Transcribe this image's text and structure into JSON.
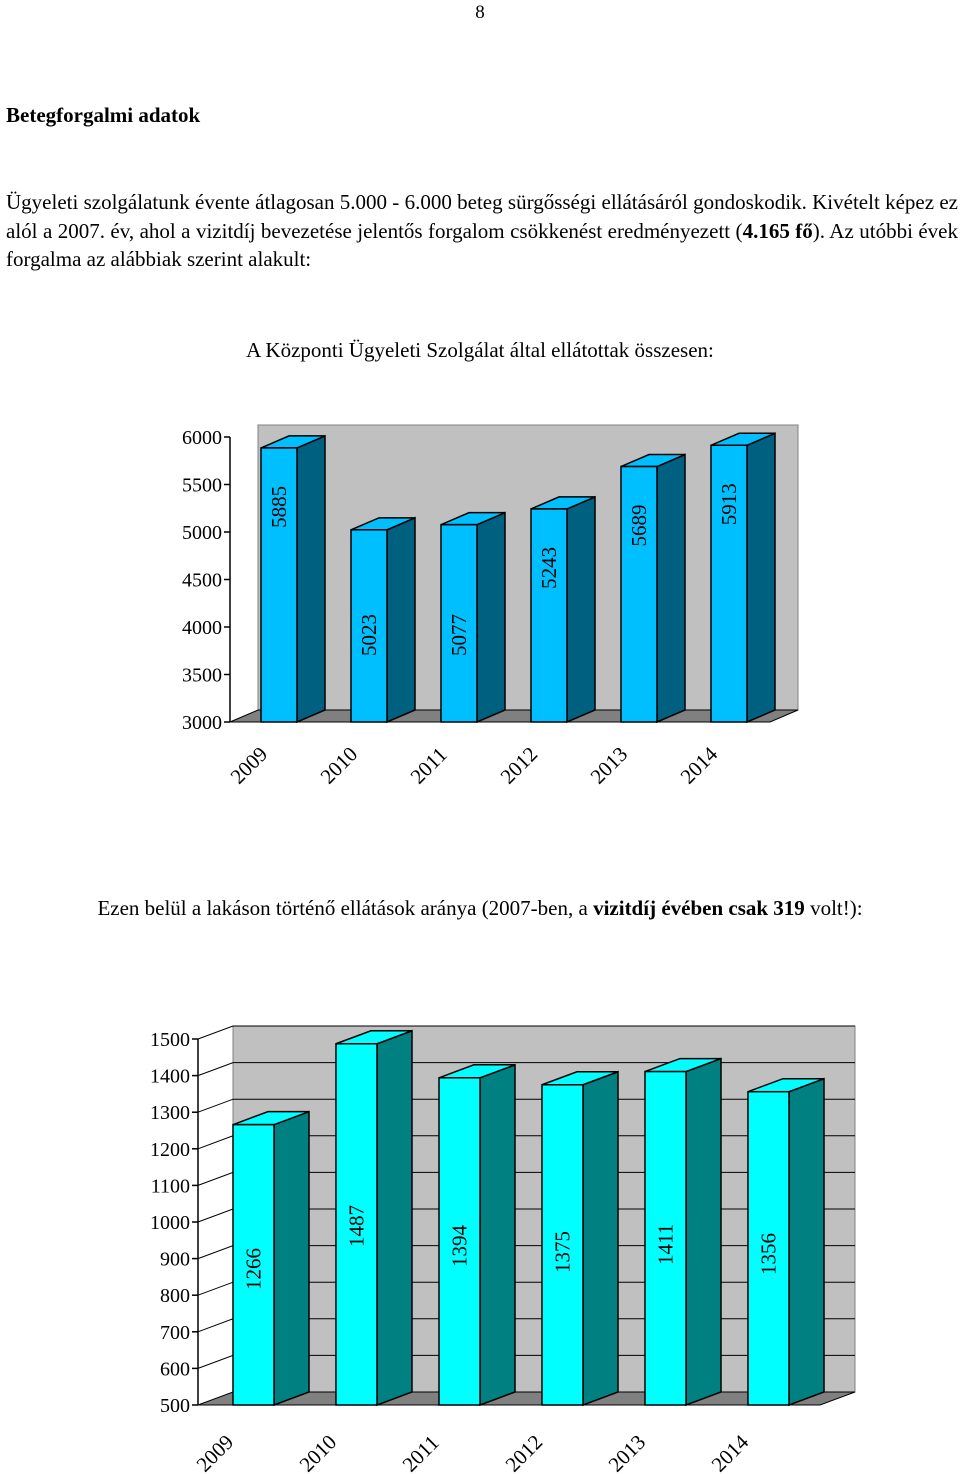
{
  "page_number": "8",
  "heading": "Betegforgalmi adatok",
  "intro": {
    "part1": "Ügyeleti szolgálatunk évente átlagosan 5.000 - 6.000 beteg sürgősségi ellátásáról gondoskodik. Kivételt képez ez alól a 2007. év, ahol a vizitdíj bevezetése jelentős forgalom csökkenést eredményezett (",
    "bold": "4.165 fő",
    "part2": "). Az utóbbi évek forgalma az alábbiak szerint alakult:"
  },
  "chart1_title": "A Központi Ügyeleti Szolgálat által ellátottak összesen:",
  "chart2_title": {
    "part1": "Ezen belül a lakáson történő ellátások aránya (2007-ben, a ",
    "bold": "vizitdíj évében csak 319",
    "part2": " volt!):"
  },
  "colors": {
    "chart1_front": "#00bfff",
    "chart1_side": "#006080",
    "chart2_front": "#00ffff",
    "chart2_side": "#008080",
    "wall": "#c0c0c0",
    "floor": "#808080"
  },
  "chart_data": [
    {
      "type": "bar",
      "title": "A Központi Ügyeleti Szolgálat által ellátottak összesen:",
      "categories": [
        "2009",
        "2010",
        "2011",
        "2012",
        "2013",
        "2014"
      ],
      "values": [
        5885,
        5023,
        5077,
        5243,
        5689,
        5913
      ],
      "value_labels": [
        "5885",
        "5023",
        "5077",
        "5243",
        "5689",
        "5913"
      ],
      "ylim": [
        3000,
        6000
      ],
      "yticks": [
        "3000",
        "3500",
        "4000",
        "4500",
        "5000",
        "5500",
        "6000"
      ],
      "grid": false,
      "legend": "none",
      "style": "3d"
    },
    {
      "type": "bar",
      "title": "Ezen belül a lakáson történő ellátások aránya (2007-ben, a vizitdíj évében csak 319 volt!):",
      "categories": [
        "2009",
        "2010",
        "2011",
        "2012",
        "2013",
        "2014"
      ],
      "values": [
        1266,
        1487,
        1394,
        1375,
        1411,
        1356
      ],
      "value_labels": [
        "1266",
        "1487",
        "1394",
        "1375",
        "1411",
        "1356"
      ],
      "ylim": [
        500,
        1500
      ],
      "yticks": [
        "500",
        "600",
        "700",
        "800",
        "900",
        "1000",
        "1100",
        "1200",
        "1300",
        "1400",
        "1500"
      ],
      "grid": true,
      "legend": "none",
      "style": "3d"
    }
  ]
}
